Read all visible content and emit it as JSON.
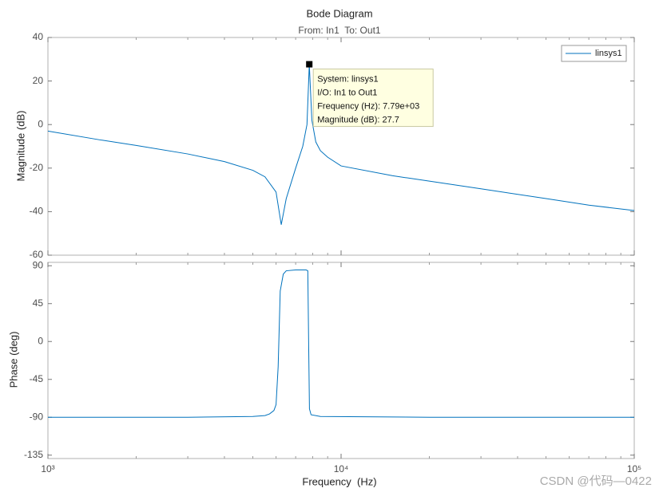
{
  "chart_data": [
    {
      "type": "line",
      "title": "Bode Diagram",
      "subtitle": "From: In1  To: Out1",
      "ylabel": "Magnitude (dB)",
      "x": [
        1000,
        1500,
        2000,
        3000,
        4000,
        5000,
        5500,
        6000,
        6250,
        6500,
        7000,
        7400,
        7650,
        7790,
        7950,
        8200,
        8500,
        9000,
        10000,
        15000,
        20000,
        30000,
        50000,
        70000,
        100000
      ],
      "series": [
        {
          "name": "linsys1",
          "color": "#0072bd",
          "values": [
            -3,
            -7,
            -9.6,
            -13.5,
            -17,
            -21,
            -24,
            -31,
            -46,
            -34,
            -20,
            -10,
            0,
            27.7,
            2,
            -8,
            -12,
            -15,
            -19,
            -23.5,
            -26,
            -29.5,
            -34,
            -37,
            -39.5
          ]
        }
      ],
      "xlim": [
        1000,
        100000
      ],
      "log_x": true,
      "ylim": [
        -60,
        40
      ],
      "yticks": [
        40,
        20,
        0,
        -20,
        -40,
        -60
      ],
      "legend": "upper right",
      "datatip": {
        "point": 13,
        "lines": [
          "System: linsys1",
          "I/O: In1 to Out1",
          "Frequency (Hz): 7.79e+03",
          "Magnitude (dB): 27.7"
        ]
      }
    },
    {
      "type": "line",
      "ylabel": "Phase (deg)",
      "xlabel": "Frequency  (Hz)",
      "x": [
        1000,
        3000,
        5000,
        5500,
        5700,
        5900,
        6000,
        6100,
        6200,
        6350,
        6500,
        7000,
        7600,
        7700,
        7750,
        7800,
        7900,
        8500,
        20000,
        100000
      ],
      "series": [
        {
          "color": "#0072bd",
          "values": [
            -90,
            -90,
            -89,
            -88,
            -86,
            -82,
            -75,
            -30,
            60,
            80,
            84,
            85,
            85,
            84,
            0,
            -80,
            -87,
            -89,
            -90,
            -90
          ]
        }
      ],
      "xlim": [
        1000,
        100000
      ],
      "log_x": true,
      "xticks": [
        {
          "value": 1000,
          "label": "10³"
        },
        {
          "value": 10000,
          "label": "10⁴"
        },
        {
          "value": 100000,
          "label": "10⁵"
        }
      ],
      "ylim": [
        -139,
        94
      ],
      "yticks": [
        90,
        45,
        0,
        -45,
        -90,
        -135
      ]
    }
  ],
  "watermark": "CSDN @代码—0422"
}
